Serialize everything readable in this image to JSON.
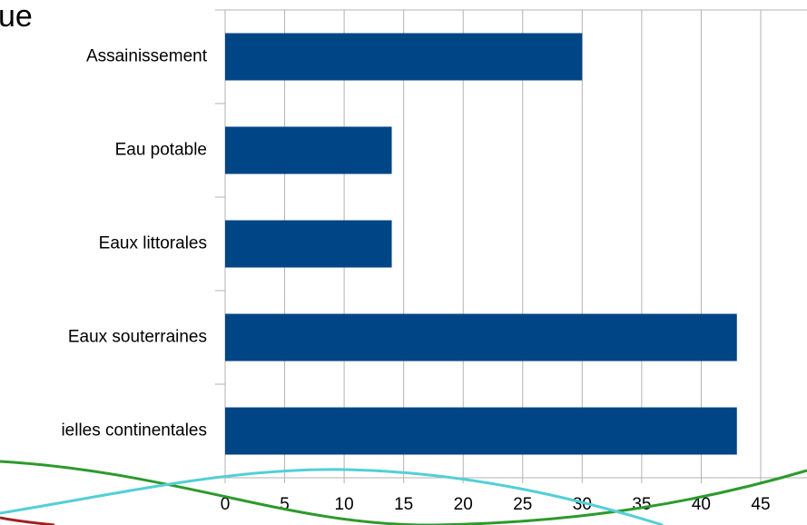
{
  "chart_data": {
    "type": "hbar",
    "title": "ue",
    "categories": [
      "Assainissement",
      "Eau potable",
      "Eaux littorales",
      "Eaux souterraines",
      "ielles continentales"
    ],
    "values": [
      30,
      14,
      14,
      43,
      43
    ],
    "color": "#004586",
    "xlim": [
      0,
      45
    ],
    "xticks": [
      0,
      5,
      10,
      15,
      20,
      25,
      30,
      35,
      40,
      45
    ],
    "grid": true
  }
}
